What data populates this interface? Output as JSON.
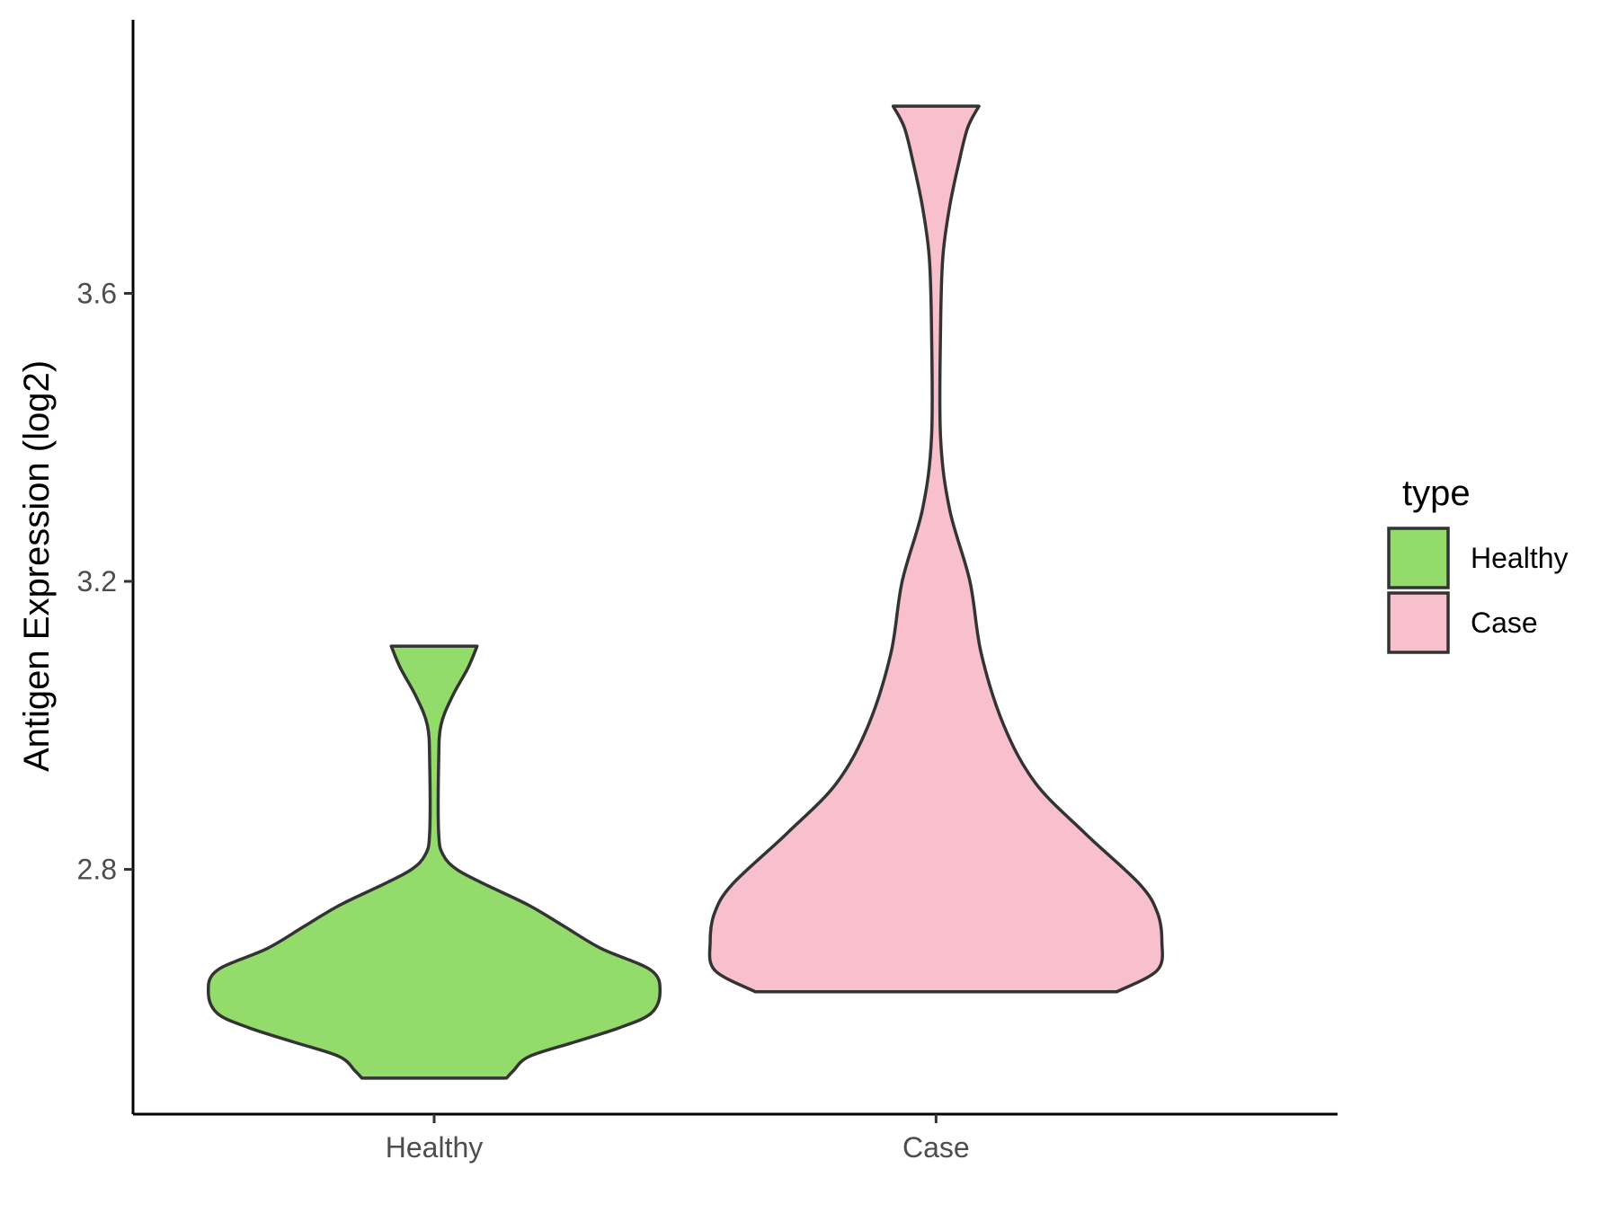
{
  "chart_data": {
    "type": "violin",
    "title": "",
    "xlabel": "",
    "ylabel": "Antigen Expression (log2)",
    "y_ticks": [
      2.8,
      3.2,
      3.6
    ],
    "y_tick_labels": [
      "2.8",
      "3.2",
      "3.6"
    ],
    "ylim": [
      2.46,
      3.98
    ],
    "categories": [
      "Healthy",
      "Case"
    ],
    "legend": {
      "title": "type",
      "position": "right",
      "entries": [
        "Healthy",
        "Case"
      ]
    },
    "grid": false,
    "series": [
      {
        "name": "Healthy",
        "color": "#93DC6B",
        "y_min": 2.51,
        "y_max": 3.11,
        "density_profile": [
          [
            2.51,
            0.32
          ],
          [
            2.52,
            0.35
          ],
          [
            2.54,
            0.42
          ],
          [
            2.56,
            0.62
          ],
          [
            2.58,
            0.82
          ],
          [
            2.6,
            0.96
          ],
          [
            2.63,
            1.0
          ],
          [
            2.66,
            0.96
          ],
          [
            2.69,
            0.74
          ],
          [
            2.72,
            0.58
          ],
          [
            2.75,
            0.42
          ],
          [
            2.78,
            0.22
          ],
          [
            2.8,
            0.1
          ],
          [
            2.82,
            0.04
          ],
          [
            2.85,
            0.02
          ],
          [
            2.95,
            0.02
          ],
          [
            3.0,
            0.03
          ],
          [
            3.04,
            0.08
          ],
          [
            3.08,
            0.15
          ],
          [
            3.11,
            0.19
          ]
        ]
      },
      {
        "name": "Case",
        "color": "#F7C0CC",
        "y_min": 2.63,
        "y_max": 3.86,
        "density_profile": [
          [
            2.63,
            0.8
          ],
          [
            2.66,
            0.98
          ],
          [
            2.7,
            1.0
          ],
          [
            2.74,
            0.98
          ],
          [
            2.78,
            0.9
          ],
          [
            2.85,
            0.66
          ],
          [
            2.92,
            0.44
          ],
          [
            3.0,
            0.3
          ],
          [
            3.1,
            0.2
          ],
          [
            3.2,
            0.15
          ],
          [
            3.3,
            0.06
          ],
          [
            3.4,
            0.02
          ],
          [
            3.55,
            0.02
          ],
          [
            3.65,
            0.03
          ],
          [
            3.72,
            0.06
          ],
          [
            3.78,
            0.1
          ],
          [
            3.83,
            0.14
          ],
          [
            3.86,
            0.19
          ]
        ]
      }
    ]
  }
}
